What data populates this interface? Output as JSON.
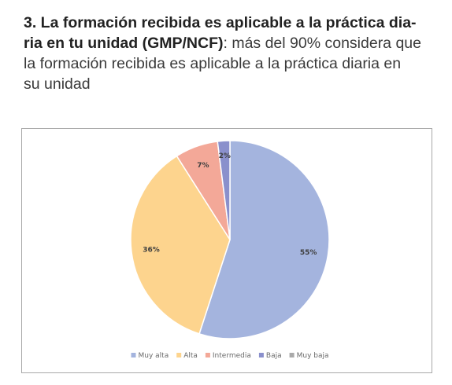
{
  "heading": {
    "bold_part": "3. La formación recibida es aplicable a la práctica dia-ria en tu unidad (GMP/NCF)",
    "bold_line1": "3. La formación recibida es aplicable a la práctica dia-",
    "bold_line2": "ria en tu unidad (GMP/NCF)",
    "rest_line2": ": más del 90% considera que",
    "rest_line3": "la formación recibida es aplicable a la práctica diaria en",
    "rest_line4": "su unidad"
  },
  "chart_data": {
    "type": "pie",
    "title": "",
    "categories": [
      "Muy alta",
      "Alta",
      "Intermedia",
      "Baja",
      "Muy baja"
    ],
    "values": [
      55,
      36,
      7,
      2,
      0
    ],
    "labels": [
      "55%",
      "36%",
      "7%",
      "2%",
      ""
    ],
    "colors": [
      "#a4b4de",
      "#fdd48e",
      "#f3a898",
      "#8a90cc",
      "#a9a9a9"
    ],
    "legend_position": "bottom",
    "start_angle_deg": 0,
    "direction": "clockwise"
  }
}
